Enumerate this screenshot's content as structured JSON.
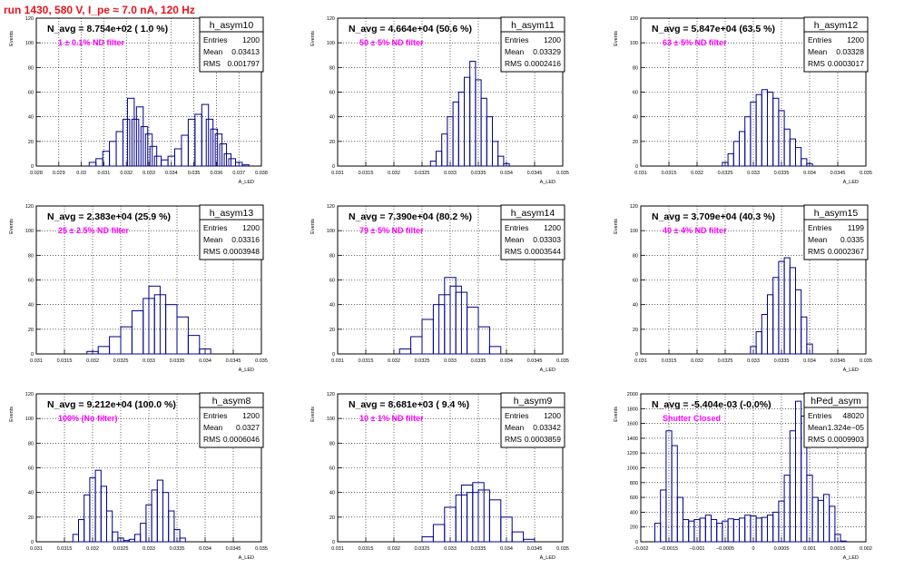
{
  "page_title": "run 1430,   580 V, I_pe ≈ 7.0 nA, 120 Hz",
  "colors": {
    "hist": "#00008b",
    "annotation": "#ff00ff",
    "title_red": "#e8141c",
    "grid": "#000000"
  },
  "chart_data": [
    {
      "type": "bar",
      "name": "h_asym10",
      "navg": "N_avg = 8.754e+02 ( 1.0 %)",
      "filter": "1 ± 0.1% ND filter",
      "stats": {
        "entries": "1200",
        "mean": "0.03413",
        "rms": "0.001797"
      },
      "xlabel": "A_LED",
      "ylabel": "Events",
      "xlim": [
        0.028,
        0.038
      ],
      "ylim": [
        0,
        120
      ],
      "xticks": [
        "0.028",
        "0.029",
        "0.03",
        "0.031",
        "0.032",
        "0.033",
        "0.034",
        "0.035",
        "0.036",
        "0.037",
        "0.038"
      ],
      "yticks": [
        "0",
        "20",
        "40",
        "60",
        "80",
        "100",
        "120"
      ],
      "x": [
        0.0305,
        0.0308,
        0.0311,
        0.0314,
        0.0317,
        0.032,
        0.0322,
        0.0324,
        0.0326,
        0.0328,
        0.033,
        0.0332,
        0.0334,
        0.0337,
        0.034,
        0.0343,
        0.0346,
        0.0349,
        0.0352,
        0.0355,
        0.0357,
        0.0359,
        0.0361,
        0.0363,
        0.0365,
        0.0367,
        0.037,
        0.0373
      ],
      "values": [
        3,
        6,
        12,
        20,
        28,
        38,
        55,
        38,
        48,
        32,
        26,
        16,
        8,
        5,
        8,
        14,
        25,
        38,
        42,
        50,
        38,
        30,
        26,
        18,
        10,
        6,
        3,
        1
      ]
    },
    {
      "type": "bar",
      "name": "h_asym11",
      "navg": "N_avg = 4.664e+04 (50.6 %)",
      "filter": "50 ± 5% ND filter",
      "stats": {
        "entries": "1200",
        "mean": "0.03329",
        "rms": "0.0002416"
      },
      "xlabel": "A_LED",
      "ylabel": "Events",
      "xlim": [
        0.031,
        0.035
      ],
      "ylim": [
        0,
        120
      ],
      "xticks": [
        "0.031",
        "0.0315",
        "0.032",
        "0.0325",
        "0.033",
        "0.0335",
        "0.034",
        "0.0345",
        "0.035"
      ],
      "yticks": [
        "0",
        "20",
        "40",
        "60",
        "80",
        "100",
        "120"
      ],
      "x": [
        0.0327,
        0.0328,
        0.0329,
        0.033,
        0.0331,
        0.0332,
        0.0333,
        0.0334,
        0.0335,
        0.0336,
        0.0337,
        0.0338,
        0.0339,
        0.034
      ],
      "values": [
        4,
        12,
        26,
        40,
        52,
        60,
        72,
        85,
        70,
        55,
        40,
        20,
        8,
        2
      ]
    },
    {
      "type": "bar",
      "name": "h_asym12",
      "navg": "N_avg = 5.847e+04 (63.5 %)",
      "filter": "63 ± 5% ND filter",
      "stats": {
        "entries": "1200",
        "mean": "0.03328",
        "rms": "0.0003017"
      },
      "xlabel": "A_LED",
      "ylabel": "Events",
      "xlim": [
        0.031,
        0.035
      ],
      "ylim": [
        0,
        120
      ],
      "xticks": [
        "0.031",
        "0.0315",
        "0.032",
        "0.0325",
        "0.033",
        "0.0335",
        "0.034",
        "0.0345",
        "0.035"
      ],
      "yticks": [
        "0",
        "20",
        "40",
        "60",
        "80",
        "100",
        "120"
      ],
      "x": [
        0.0325,
        0.0326,
        0.0327,
        0.0328,
        0.0329,
        0.033,
        0.0331,
        0.0332,
        0.0333,
        0.0334,
        0.0335,
        0.0336,
        0.0337,
        0.0338,
        0.0339,
        0.034
      ],
      "values": [
        3,
        10,
        20,
        28,
        40,
        52,
        58,
        62,
        60,
        55,
        45,
        30,
        22,
        15,
        6,
        2
      ]
    },
    {
      "type": "bar",
      "name": "h_asym13",
      "navg": "N_avg = 2.383e+04 (25.9 %)",
      "filter": "25 ± 2.5% ND filter",
      "stats": {
        "entries": "1200",
        "mean": "0.03316",
        "rms": "0.0003948"
      },
      "xlabel": "A_LED",
      "ylabel": "Events",
      "xlim": [
        0.031,
        0.035
      ],
      "ylim": [
        0,
        120
      ],
      "xticks": [
        "0.031",
        "0.0315",
        "0.032",
        "0.0325",
        "0.033",
        "0.0335",
        "0.034",
        "0.0345",
        "0.035"
      ],
      "yticks": [
        "0",
        "20",
        "40",
        "60",
        "80",
        "100",
        "120"
      ],
      "x": [
        0.032,
        0.0322,
        0.0324,
        0.0326,
        0.0328,
        0.033,
        0.0331,
        0.0332,
        0.0334,
        0.0336,
        0.0338,
        0.034
      ],
      "values": [
        2,
        6,
        14,
        22,
        35,
        45,
        55,
        48,
        40,
        30,
        15,
        4
      ]
    },
    {
      "type": "bar",
      "name": "h_asym14",
      "navg": "N_avg = 7.390e+04 (80.2 %)",
      "filter": "79 ± 5% ND filter",
      "stats": {
        "entries": "1200",
        "mean": "0.03303",
        "rms": "0.0003544"
      },
      "xlabel": "A_LED",
      "ylabel": "Events",
      "xlim": [
        0.031,
        0.035
      ],
      "ylim": [
        0,
        120
      ],
      "xticks": [
        "0.031",
        "0.0315",
        "0.032",
        "0.0325",
        "0.033",
        "0.0335",
        "0.034",
        "0.0345",
        "0.035"
      ],
      "yticks": [
        "0",
        "20",
        "40",
        "60",
        "80",
        "100",
        "120"
      ],
      "x": [
        0.0322,
        0.0324,
        0.0326,
        0.0328,
        0.0329,
        0.033,
        0.0331,
        0.0332,
        0.0334,
        0.0336,
        0.0338
      ],
      "values": [
        4,
        14,
        28,
        40,
        48,
        62,
        55,
        50,
        38,
        22,
        6
      ]
    },
    {
      "type": "bar",
      "name": "h_asym15",
      "navg": "N_avg = 3.709e+04 (40.3 %)",
      "filter": "40 ± 4% ND filter",
      "stats": {
        "entries": "1199",
        "mean": "0.0335",
        "rms": "0.0002367"
      },
      "xlabel": "A_LED",
      "ylabel": "Events",
      "xlim": [
        0.031,
        0.035
      ],
      "ylim": [
        0,
        120
      ],
      "xticks": [
        "0.031",
        "0.0315",
        "0.032",
        "0.0325",
        "0.033",
        "0.0335",
        "0.034",
        "0.0345",
        "0.035"
      ],
      "yticks": [
        "0",
        "20",
        "40",
        "60",
        "80",
        "100",
        "120"
      ],
      "x": [
        0.033,
        0.0331,
        0.0332,
        0.0333,
        0.0334,
        0.0335,
        0.0336,
        0.0337,
        0.0338,
        0.0339,
        0.034
      ],
      "values": [
        6,
        18,
        32,
        48,
        62,
        75,
        78,
        70,
        52,
        30,
        8
      ]
    },
    {
      "type": "bar",
      "name": "h_asym8",
      "navg": "N_avg = 9.212e+04 (100.0 %)",
      "filter": "100% (No filter)",
      "stats": {
        "entries": "1200",
        "mean": "0.0327",
        "rms": "0.0006046"
      },
      "xlabel": "A_LED",
      "ylabel": "Events",
      "xlim": [
        0.031,
        0.035
      ],
      "ylim": [
        0,
        120
      ],
      "xticks": [
        "0.031",
        "0.0315",
        "0.032",
        "0.0325",
        "0.033",
        "0.0335",
        "0.034",
        "0.0345",
        "0.035"
      ],
      "yticks": [
        "0",
        "20",
        "40",
        "60",
        "80",
        "100",
        "120"
      ],
      "x": [
        0.0317,
        0.0318,
        0.0319,
        0.032,
        0.0321,
        0.0322,
        0.0323,
        0.0324,
        0.0325,
        0.0326,
        0.0327,
        0.0328,
        0.0329,
        0.033,
        0.0331,
        0.0332,
        0.0333,
        0.0334,
        0.0335,
        0.0336
      ],
      "values": [
        6,
        18,
        38,
        52,
        58,
        45,
        25,
        8,
        3,
        1,
        2,
        6,
        15,
        30,
        42,
        50,
        40,
        25,
        10,
        3
      ]
    },
    {
      "type": "bar",
      "name": "h_asym9",
      "navg": "N_avg = 8.681e+03 ( 9.4 %)",
      "filter": "10 ± 1% ND filter",
      "stats": {
        "entries": "1200",
        "mean": "0.03342",
        "rms": "0.0003859"
      },
      "xlabel": "A_LED",
      "ylabel": "Events",
      "xlim": [
        0.031,
        0.035
      ],
      "ylim": [
        0,
        120
      ],
      "xticks": [
        "0.031",
        "0.0315",
        "0.032",
        "0.0325",
        "0.033",
        "0.0335",
        "0.034",
        "0.0345",
        "0.035"
      ],
      "yticks": [
        "0",
        "20",
        "40",
        "60",
        "80",
        "100",
        "120"
      ],
      "x": [
        0.0326,
        0.0328,
        0.033,
        0.0332,
        0.0333,
        0.0334,
        0.0335,
        0.0336,
        0.0338,
        0.034,
        0.0342,
        0.0344
      ],
      "values": [
        4,
        14,
        28,
        38,
        46,
        40,
        48,
        42,
        34,
        20,
        8,
        2
      ]
    },
    {
      "type": "bar",
      "name": "hPed_asym",
      "navg": "N_avg = -5.404e-03 (-0.0%)",
      "filter": "Shutter Closed",
      "stats": {
        "entries": "48020",
        "mean": "1.324e−05",
        "rms": "0.0009903"
      },
      "xlabel": "A_LED",
      "ylabel": "Events",
      "xlim": [
        -0.002,
        0.002
      ],
      "ylim": [
        0,
        2000
      ],
      "xticks": [
        "−0.002",
        "−0.0015",
        "−0.001",
        "−0.0005",
        "0",
        "0.0005",
        "0.001",
        "0.0015",
        "0.002"
      ],
      "yticks": [
        "0",
        "200",
        "400",
        "600",
        "800",
        "1000",
        "1200",
        "1400",
        "1600",
        "1800",
        "2000"
      ],
      "x": [
        -0.0017,
        -0.0016,
        -0.0015,
        -0.0014,
        -0.0013,
        -0.0012,
        -0.0011,
        -0.001,
        -0.0009,
        -0.0008,
        -0.0007,
        -0.0006,
        -0.0005,
        -0.0004,
        -0.0003,
        -0.0002,
        -0.0001,
        0,
        0.0001,
        0.0002,
        0.0003,
        0.0004,
        0.0005,
        0.0006,
        0.0007,
        0.0008,
        0.0009,
        0.001,
        0.0011,
        0.0012,
        0.0013,
        0.0014,
        0.0015,
        0.0016
      ],
      "values": [
        250,
        700,
        1500,
        1300,
        600,
        300,
        280,
        300,
        320,
        360,
        300,
        250,
        280,
        310,
        300,
        320,
        360,
        350,
        320,
        330,
        360,
        400,
        550,
        900,
        1500,
        1900,
        1700,
        900,
        600,
        560,
        640,
        480,
        100,
        10
      ]
    }
  ]
}
